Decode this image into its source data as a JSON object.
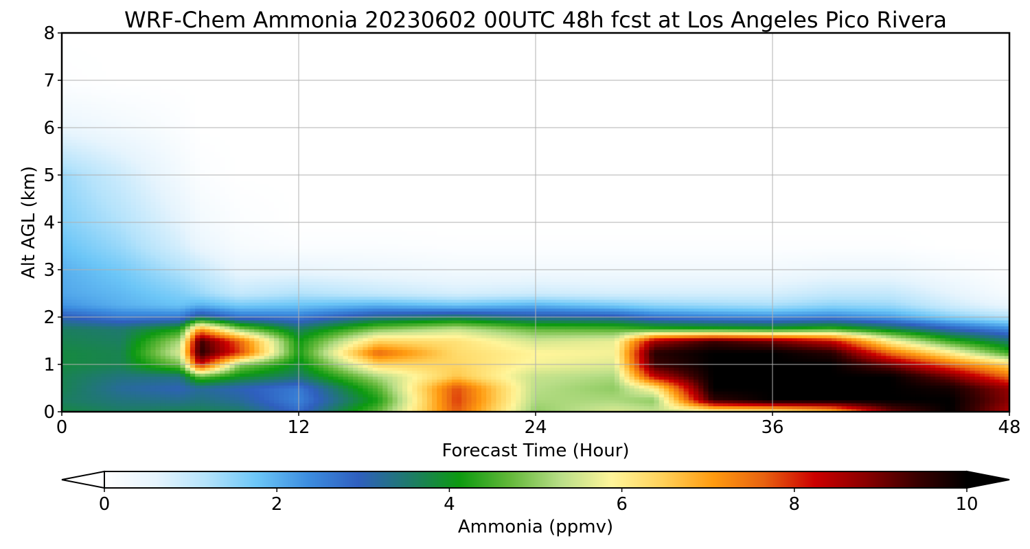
{
  "chart_data": {
    "type": "heatmap",
    "title": "WRF-Chem Ammonia  20230602 00UTC 48h fcst at Los Angeles Pico Rivera",
    "xlabel": "Forecast Time (Hour)",
    "ylabel": "Alt AGL (km)",
    "xlim": [
      0,
      48
    ],
    "ylim": [
      0,
      8
    ],
    "xticks": [
      0,
      12,
      24,
      36,
      48
    ],
    "yticks": [
      0,
      1,
      2,
      3,
      4,
      5,
      6,
      7,
      8
    ],
    "grid": true,
    "colorbar": {
      "label": "Ammonia  (ppmv)",
      "orientation": "horizontal",
      "placement": "bottom",
      "min": 0,
      "max": 10,
      "ticks": [
        0,
        2,
        4,
        6,
        8,
        10
      ],
      "extend": "both",
      "colors": [
        "#ffffff",
        "#e6f4fd",
        "#b5e3fb",
        "#6cc6f7",
        "#3d8ee0",
        "#2f5fbf",
        "#1e7a6b",
        "#0d9a10",
        "#63b83a",
        "#b9de88",
        "#fff59a",
        "#ffd15a",
        "#ff9b10",
        "#e86210",
        "#cc0000",
        "#8a0000",
        "#3a0000",
        "#000000"
      ]
    },
    "x": [
      0,
      3,
      6,
      7,
      9,
      12,
      16,
      20,
      24,
      28,
      30,
      33,
      36,
      39,
      42,
      45,
      48
    ],
    "y": [
      0,
      0.25,
      0.5,
      0.75,
      1.0,
      1.25,
      1.5,
      1.75,
      2.0,
      2.25,
      2.5,
      3.0,
      3.5,
      4.0,
      5.0,
      6.0,
      7.0,
      8.0
    ],
    "z": [
      [
        3.8,
        3.6,
        3.7,
        3.7,
        3.6,
        2.8,
        4.7,
        7.7,
        5.0,
        5.6,
        5.4,
        5.6,
        5.8,
        6.5,
        9.0,
        10.0,
        8.5
      ],
      [
        3.6,
        3.4,
        3.3,
        3.4,
        3.2,
        2.5,
        4.2,
        7.9,
        5.2,
        5.2,
        5.0,
        9.5,
        10.0,
        10.0,
        10.0,
        10.0,
        8.8
      ],
      [
        3.7,
        3.2,
        3.0,
        3.2,
        3.0,
        2.6,
        4.6,
        7.8,
        5.3,
        5.0,
        6.0,
        10.0,
        10.0,
        10.0,
        10.0,
        9.8,
        8.7
      ],
      [
        3.7,
        3.4,
        3.4,
        4.7,
        4.0,
        3.5,
        5.2,
        6.6,
        5.4,
        5.2,
        8.3,
        10.0,
        10.0,
        10.0,
        10.0,
        9.0,
        7.5
      ],
      [
        3.8,
        3.7,
        4.8,
        8.3,
        5.0,
        3.9,
        6.4,
        6.4,
        5.8,
        5.6,
        9.4,
        10.0,
        10.0,
        10.0,
        9.0,
        7.6,
        6.4
      ],
      [
        3.8,
        3.7,
        5.6,
        9.6,
        7.9,
        4.2,
        7.6,
        6.3,
        5.9,
        5.8,
        9.6,
        10.0,
        10.0,
        9.6,
        7.5,
        6.0,
        4.4
      ],
      [
        3.7,
        3.6,
        5.2,
        9.4,
        7.6,
        4.1,
        6.4,
        6.2,
        5.5,
        5.7,
        8.6,
        9.4,
        9.0,
        8.3,
        5.9,
        4.4,
        3.5
      ],
      [
        3.6,
        3.5,
        4.2,
        7.1,
        5.0,
        3.6,
        4.9,
        5.4,
        4.7,
        4.6,
        4.4,
        4.3,
        4.2,
        4.5,
        3.8,
        3.0,
        2.4
      ],
      [
        3.0,
        2.6,
        2.6,
        3.4,
        2.7,
        2.6,
        3.3,
        3.6,
        3.2,
        3.1,
        2.7,
        2.5,
        2.4,
        2.5,
        2.2,
        1.6,
        1.2
      ],
      [
        2.3,
        2.0,
        1.8,
        2.0,
        1.7,
        1.8,
        2.0,
        1.8,
        2.0,
        1.7,
        1.5,
        1.4,
        1.3,
        1.5,
        1.4,
        0.9,
        0.5
      ],
      [
        2.1,
        1.9,
        1.6,
        1.4,
        1.0,
        1.2,
        1.0,
        0.8,
        0.9,
        0.8,
        0.8,
        0.8,
        0.8,
        1.0,
        1.0,
        0.6,
        0.2
      ],
      [
        2.0,
        1.7,
        1.2,
        1.0,
        0.5,
        0.5,
        0.4,
        0.3,
        0.3,
        0.3,
        0.3,
        0.3,
        0.3,
        0.4,
        0.4,
        0.2,
        0.05
      ],
      [
        1.8,
        1.4,
        0.8,
        0.5,
        0.2,
        0.1,
        0.1,
        0.05,
        0.05,
        0.05,
        0.05,
        0.05,
        0.05,
        0.05,
        0.05,
        0.0,
        0.0
      ],
      [
        1.6,
        1.2,
        0.6,
        0.3,
        0.1,
        0.0,
        0.0,
        0.0,
        0.0,
        0.0,
        0.0,
        0.0,
        0.0,
        0.0,
        0.0,
        0.0,
        0.0
      ],
      [
        1.4,
        0.9,
        0.3,
        0.1,
        0.0,
        0.0,
        0.0,
        0.0,
        0.0,
        0.0,
        0.0,
        0.0,
        0.0,
        0.0,
        0.0,
        0.0,
        0.0
      ],
      [
        0.5,
        0.3,
        0.1,
        0.0,
        0.0,
        0.0,
        0.0,
        0.0,
        0.0,
        0.0,
        0.0,
        0.0,
        0.0,
        0.0,
        0.0,
        0.0,
        0.0
      ],
      [
        0.05,
        0.0,
        0.0,
        0.0,
        0.0,
        0.0,
        0.0,
        0.0,
        0.0,
        0.0,
        0.0,
        0.0,
        0.0,
        0.0,
        0.0,
        0.0,
        0.0
      ],
      [
        0.0,
        0.0,
        0.0,
        0.0,
        0.0,
        0.0,
        0.0,
        0.0,
        0.0,
        0.0,
        0.0,
        0.0,
        0.0,
        0.0,
        0.0,
        0.0,
        0.0
      ]
    ]
  }
}
